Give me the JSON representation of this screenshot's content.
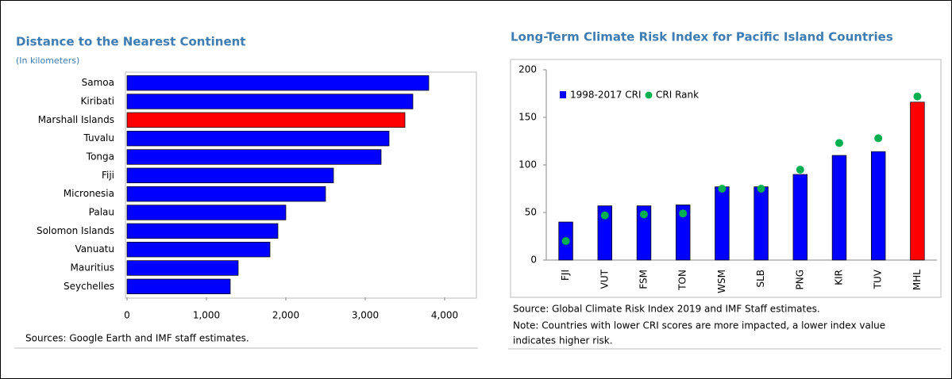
{
  "chart_data": [
    {
      "type": "bar",
      "orientation": "horizontal",
      "title": "Distance to the Nearest Continent",
      "subtitle": "(In kilometers)",
      "categories": [
        "Samoa",
        "Kiribati",
        "Marshall Islands",
        "Tuvalu",
        "Tonga",
        "Fiji",
        "Micronesia",
        "Palau",
        "Solomon Islands",
        "Vanuatu",
        "Mauritius",
        "Seychelles"
      ],
      "values": [
        3800,
        3600,
        3500,
        3300,
        3200,
        2600,
        2500,
        2000,
        1900,
        1800,
        1400,
        1300
      ],
      "colors": [
        "#0000ff",
        "#0000ff",
        "#ff0000",
        "#0000ff",
        "#0000ff",
        "#0000ff",
        "#0000ff",
        "#0000ff",
        "#0000ff",
        "#0000ff",
        "#0000ff",
        "#0000ff"
      ],
      "xlim": [
        0,
        4000
      ],
      "xticks": [
        0,
        {
          "value": 1000,
          "label": "1,000"
        },
        {
          "value": 2000,
          "label": "2,000"
        },
        {
          "value": 3000,
          "label": "3,000"
        },
        {
          "value": 4000,
          "label": "4,000"
        }
      ],
      "source": "Sources: Google Earth and IMF staff estimates."
    },
    {
      "type": "bar",
      "title": "Long-Term Climate Risk Index for Pacific Island Countries",
      "categories": [
        "FJI",
        "VUT",
        "FSM",
        "TON",
        "WSM",
        "SLB",
        "PNG",
        "KIR",
        "TUV",
        "MHL"
      ],
      "series": [
        {
          "name": "1998-2017 CRI",
          "type": "bar",
          "color": "#0000ff",
          "colors": [
            "#0000ff",
            "#0000ff",
            "#0000ff",
            "#0000ff",
            "#0000ff",
            "#0000ff",
            "#0000ff",
            "#0000ff",
            "#0000ff",
            "#ff0000"
          ],
          "values": [
            40,
            57,
            57,
            58,
            77,
            77,
            90,
            110,
            114,
            166
          ]
        },
        {
          "name": "CRI Rank",
          "type": "scatter",
          "color": "#00b050",
          "values": [
            20,
            47,
            48,
            49,
            75,
            75,
            95,
            123,
            128,
            172
          ]
        }
      ],
      "ylim": [
        0,
        200
      ],
      "yticks": [
        0,
        50,
        100,
        150,
        200
      ],
      "legend": "upper left",
      "source": "Source: Global Climate Risk Index 2019 and IMF Staff estimates.",
      "note": [
        "Note: Countries with lower CRI scores are more impacted, a lower index value",
        "indicates higher risk."
      ]
    }
  ]
}
